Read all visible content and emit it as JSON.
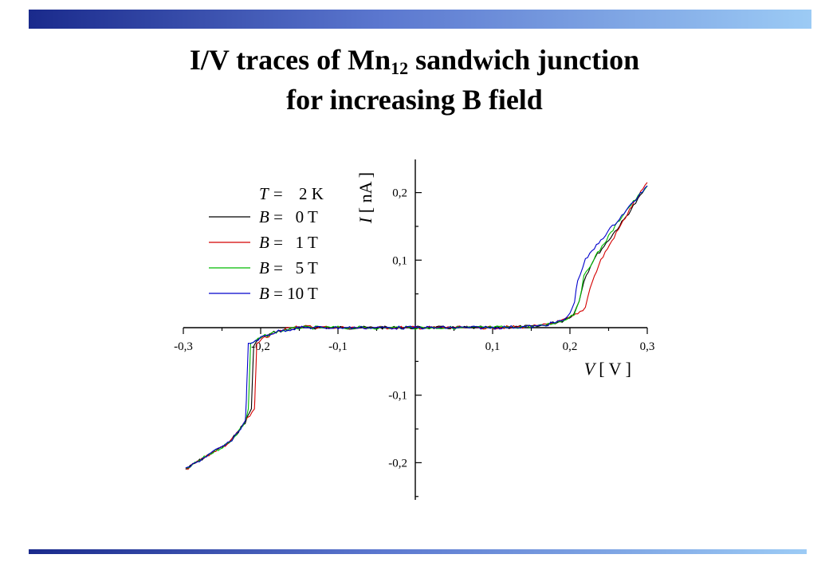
{
  "slide": {
    "title_part1": "I/V traces of Mn",
    "title_subscript": "12",
    "title_part2": " sandwich junction",
    "title_line2": "for increasing B field"
  },
  "theme": {
    "bar_dark": "#1a2a8c",
    "bar_light": "#9ccbf5"
  },
  "chart_data": {
    "type": "line",
    "xlabel_var": "V",
    "xlabel_unit": "[ V ]",
    "ylabel_var": "I",
    "ylabel_unit": "[ nA ]",
    "xlim": [
      -0.3,
      0.3
    ],
    "ylim": [
      -0.26,
      0.26
    ],
    "x_ticks": [
      -0.3,
      -0.2,
      -0.1,
      0.1,
      0.2,
      0.3
    ],
    "x_tick_labels": [
      "-0,3",
      "-0,2",
      "-0,1",
      "0,1",
      "0,2",
      "0,3"
    ],
    "y_ticks": [
      0.2,
      0.1,
      -0.1,
      -0.2
    ],
    "y_tick_labels": [
      "0,2",
      "0,1",
      "-0,1",
      "-0,2"
    ],
    "grid": false,
    "legend_position": "top-left",
    "temperature_label": {
      "var": "T =",
      "value": "2 K"
    },
    "series": [
      {
        "name": "B =   0 T",
        "color": "#000000",
        "x": [
          -0.297,
          -0.27,
          -0.24,
          -0.22,
          -0.212,
          -0.211,
          -0.209,
          -0.2,
          -0.18,
          -0.15,
          -0.1,
          0,
          0.1,
          0.16,
          0.19,
          0.205,
          0.212,
          0.218,
          0.23,
          0.25,
          0.27,
          0.3
        ],
        "y": [
          -0.21,
          -0.19,
          -0.17,
          -0.14,
          -0.12,
          -0.09,
          -0.025,
          -0.015,
          -0.006,
          0,
          0,
          0,
          0,
          0.002,
          0.01,
          0.02,
          0.04,
          0.07,
          0.1,
          0.13,
          0.16,
          0.21
        ]
      },
      {
        "name": "B =   1 T",
        "color": "#d40000",
        "x": [
          -0.297,
          -0.27,
          -0.24,
          -0.22,
          -0.208,
          -0.207,
          -0.205,
          -0.195,
          -0.175,
          -0.16,
          -0.1,
          0,
          0.1,
          0.16,
          0.19,
          0.21,
          0.22,
          0.226,
          0.24,
          0.26,
          0.28,
          0.3
        ],
        "y": [
          -0.21,
          -0.19,
          -0.17,
          -0.14,
          -0.12,
          -0.09,
          -0.025,
          -0.015,
          -0.005,
          0.002,
          0,
          0,
          0,
          0.002,
          0.01,
          0.02,
          0.03,
          0.06,
          0.1,
          0.14,
          0.18,
          0.215
        ]
      },
      {
        "name": "B =   5 T",
        "color": "#00bb00",
        "x": [
          -0.297,
          -0.27,
          -0.24,
          -0.22,
          -0.216,
          -0.215,
          -0.213,
          -0.2,
          -0.18,
          -0.15,
          -0.1,
          0,
          0.1,
          0.16,
          0.19,
          0.205,
          0.212,
          0.218,
          0.23,
          0.25,
          0.27,
          0.3
        ],
        "y": [
          -0.21,
          -0.19,
          -0.17,
          -0.14,
          -0.12,
          -0.09,
          -0.025,
          -0.015,
          -0.006,
          0,
          0,
          0,
          0,
          0.002,
          0.01,
          0.02,
          0.04,
          0.075,
          0.1,
          0.135,
          0.17,
          0.21
        ]
      },
      {
        "name": "B = 10 T",
        "color": "#0000cc",
        "x": [
          -0.297,
          -0.27,
          -0.24,
          -0.22,
          -0.219,
          -0.218,
          -0.216,
          -0.2,
          -0.18,
          -0.15,
          -0.1,
          0,
          0.1,
          0.16,
          0.19,
          0.2,
          0.206,
          0.21,
          0.22,
          0.24,
          0.27,
          0.3
        ],
        "y": [
          -0.21,
          -0.19,
          -0.17,
          -0.14,
          -0.12,
          -0.09,
          -0.025,
          -0.015,
          -0.006,
          0,
          0,
          0,
          0,
          0.002,
          0.01,
          0.02,
          0.04,
          0.07,
          0.1,
          0.13,
          0.17,
          0.21
        ]
      }
    ]
  }
}
